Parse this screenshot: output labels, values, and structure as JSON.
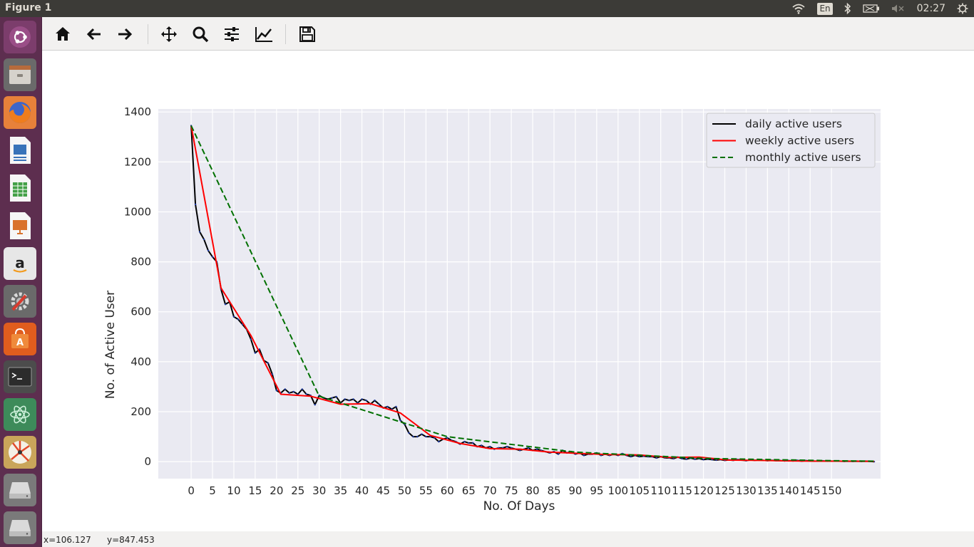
{
  "window": {
    "title": "Figure 1"
  },
  "tray": {
    "keyboard": "En",
    "clock": "02:27"
  },
  "launcher": {
    "items": [
      "ubuntu-dash",
      "files",
      "firefox",
      "libreoffice-writer",
      "libreoffice-calc",
      "libreoffice-impress",
      "amazon",
      "system-settings",
      "ubuntu-software",
      "terminal",
      "atom",
      "kazam",
      "drive-1",
      "drive-2"
    ]
  },
  "toolbar": {
    "buttons": [
      "home",
      "back",
      "forward",
      "pan",
      "zoom",
      "configure-subplots",
      "edit-axis",
      "save"
    ]
  },
  "status": {
    "x": "x=106.127",
    "y": "y=847.453"
  },
  "chart_data": {
    "type": "line",
    "xlabel": "No. Of Days",
    "ylabel": "No. of Active User",
    "xlim": [
      -7.7,
      161.5
    ],
    "ylim": [
      -68,
      1412
    ],
    "xticks": [
      0,
      5,
      10,
      15,
      20,
      25,
      30,
      35,
      40,
      45,
      50,
      55,
      60,
      65,
      70,
      75,
      80,
      85,
      90,
      95,
      100,
      105,
      110,
      115,
      120,
      125,
      130,
      135,
      140,
      145,
      150
    ],
    "yticks": [
      0,
      200,
      400,
      600,
      800,
      1000,
      1200,
      1400
    ],
    "legend_position": "top-right",
    "grid": true,
    "series": [
      {
        "name": "daily active users",
        "color": "#000000",
        "marker_color": "#1f3ca6",
        "style": "solid",
        "x": [
          0,
          1,
          2,
          3,
          4,
          5,
          6,
          7,
          8,
          9,
          10,
          11,
          12,
          13,
          14,
          15,
          16,
          17,
          18,
          19,
          20,
          21,
          22,
          23,
          24,
          25,
          26,
          27,
          28,
          29,
          30,
          31,
          32,
          33,
          34,
          35,
          36,
          37,
          38,
          39,
          40,
          41,
          42,
          43,
          44,
          45,
          46,
          47,
          48,
          49,
          50,
          51,
          52,
          53,
          54,
          55,
          56,
          57,
          58,
          59,
          60,
          61,
          62,
          63,
          64,
          65,
          66,
          67,
          68,
          69,
          70,
          71,
          72,
          73,
          74,
          75,
          76,
          77,
          78,
          79,
          80,
          81,
          82,
          83,
          84,
          85,
          86,
          87,
          88,
          89,
          90,
          91,
          92,
          93,
          94,
          95,
          96,
          97,
          98,
          99,
          100,
          101,
          102,
          103,
          104,
          105,
          106,
          107,
          108,
          109,
          110,
          111,
          112,
          113,
          114,
          115,
          116,
          117,
          118,
          119,
          120,
          121,
          122,
          123,
          124,
          125,
          126,
          127,
          128,
          129,
          130,
          131,
          132,
          133,
          134,
          135,
          136,
          137,
          138,
          139,
          140,
          141,
          142,
          143,
          144,
          145,
          146,
          147,
          148,
          149,
          150,
          151,
          152,
          153,
          154,
          155,
          156,
          157,
          158,
          159,
          160
        ],
        "y": [
          1345,
          1030,
          920,
          890,
          845,
          820,
          800,
          690,
          630,
          640,
          580,
          570,
          550,
          530,
          490,
          435,
          450,
          405,
          395,
          350,
          285,
          275,
          290,
          275,
          280,
          270,
          290,
          270,
          265,
          228,
          265,
          255,
          250,
          255,
          260,
          235,
          250,
          245,
          250,
          235,
          250,
          245,
          230,
          245,
          230,
          215,
          220,
          210,
          220,
          165,
          150,
          115,
          100,
          100,
          110,
          100,
          100,
          95,
          80,
          90,
          95,
          85,
          80,
          70,
          80,
          75,
          75,
          60,
          65,
          55,
          60,
          50,
          55,
          55,
          60,
          55,
          50,
          45,
          50,
          55,
          45,
          50,
          45,
          40,
          35,
          40,
          30,
          45,
          35,
          40,
          30,
          35,
          25,
          30,
          30,
          35,
          25,
          30,
          25,
          30,
          25,
          32,
          25,
          20,
          25,
          20,
          22,
          20,
          20,
          15,
          20,
          15,
          15,
          12,
          18,
          12,
          10,
          14,
          10,
          12,
          8,
          10,
          8,
          6,
          8,
          5,
          7,
          5,
          8,
          6,
          4,
          7,
          5,
          6,
          5,
          4,
          5,
          4,
          4,
          3,
          4,
          3,
          5,
          2,
          4,
          3,
          2,
          3,
          3,
          2,
          2,
          3,
          2,
          1,
          2,
          1,
          2,
          1,
          2,
          1,
          0
        ]
      },
      {
        "name": "weekly active users",
        "color": "#ff0000",
        "style": "solid",
        "x": [
          0,
          7,
          14,
          21,
          28,
          35,
          42,
          49,
          56,
          63,
          70,
          77,
          84,
          91,
          98,
          105,
          112,
          119,
          126,
          133,
          140,
          147,
          153,
          160
        ],
        "y": [
          1345,
          695,
          505,
          270,
          262,
          230,
          232,
          195,
          105,
          73,
          52,
          50,
          38,
          33,
          28,
          27,
          17,
          18,
          6,
          5,
          3,
          2,
          2,
          1
        ]
      },
      {
        "name": "monthly active users",
        "color": "#007000",
        "style": "dashed",
        "x": [
          0,
          30,
          60,
          90,
          120,
          150,
          160
        ],
        "y": [
          1345,
          262,
          100,
          38,
          13,
          4,
          2
        ]
      }
    ]
  }
}
